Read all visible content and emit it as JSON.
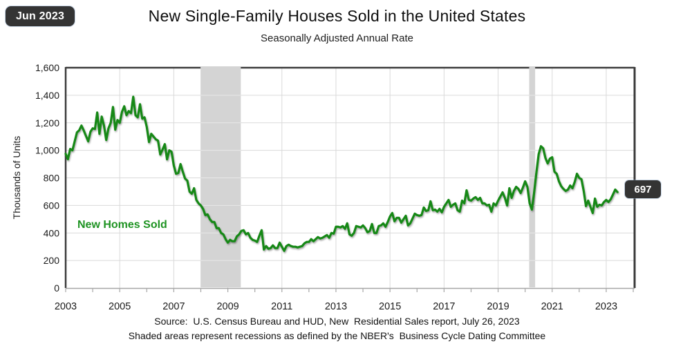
{
  "window": {
    "date_badge": "Jun 2023"
  },
  "header": {
    "title": "New Single-Family Houses Sold in the United States",
    "subtitle": "Seasonally Adjusted Annual Rate"
  },
  "annotations": {
    "series_label": "New Homes Sold",
    "last_value_badge": "697"
  },
  "axis": {
    "y_title": "Thousands of Units"
  },
  "footer": {
    "line1": "Source:  U.S. Census Bureau and HUD, New  Residential Sales report, July 26, 2023",
    "line2": "Shaded areas represent recessions as defined by the NBER's  Business Cycle Dating Committee"
  },
  "colors": {
    "line": "#148814",
    "label_green": "#1e9322",
    "band": "#d4d4d4",
    "grid": "#d9d9d9",
    "grid_on_band": "#e8e8e8",
    "frame": "#3b3b3b",
    "axis_bottom": "#a6a6a6",
    "tick_text": "#1a1a1a",
    "badge_bg": "#343434",
    "badge_text": "#ffffff"
  },
  "chart_data": {
    "type": "line",
    "title": "New Single-Family Houses Sold in the United States",
    "subtitle": "Seasonally Adjusted Annual Rate",
    "ylabel": "Thousands of Units",
    "y_range": [
      0,
      1600
    ],
    "x_range": [
      2003,
      2024.05
    ],
    "ytick_values": [
      0,
      200,
      400,
      600,
      800,
      1000,
      1200,
      1400,
      1600
    ],
    "ytick_labels": [
      "0",
      "200",
      "400",
      "600",
      "800",
      "1,000",
      "1,200",
      "1,400",
      "1,600"
    ],
    "xticks": [
      2003,
      2005,
      2007,
      2009,
      2011,
      2013,
      2015,
      2017,
      2019,
      2021,
      2023
    ],
    "minor_tick_start": 2003,
    "minor_tick_end": 2024,
    "grid": true,
    "recession_bands": [
      [
        2007.99,
        2009.48
      ],
      [
        2020.15,
        2020.37
      ]
    ],
    "last_point": {
      "date": "Jun 2023",
      "value": 697
    },
    "x_start": 2003.0,
    "x_step_years": 0.0833333,
    "series": [
      {
        "name": "New Homes Sold",
        "unit": "thousands of units, SAAR, monthly Jan 2003 - Jun 2023",
        "values": [
          975,
          935,
          1010,
          1000,
          1065,
          1130,
          1145,
          1180,
          1145,
          1105,
          1065,
          1135,
          1160,
          1155,
          1275,
          1120,
          1245,
          1180,
          1075,
          1160,
          1200,
          1315,
          1150,
          1220,
          1200,
          1280,
          1320,
          1255,
          1285,
          1270,
          1389,
          1255,
          1240,
          1335,
          1230,
          1240,
          1170,
          1060,
          1120,
          1100,
          1080,
          1070,
          970,
          1005,
          1045,
          935,
          1000,
          990,
          890,
          830,
          835,
          900,
          845,
          795,
          780,
          700,
          685,
          725,
          640,
          615,
          600,
          575,
          530,
          535,
          500,
          480,
          480,
          435,
          435,
          400,
          390,
          355,
          330,
          350,
          340,
          340,
          375,
          390,
          415,
          420,
          390,
          400,
          365,
          350,
          345,
          335,
          380,
          420,
          280,
          305,
          285,
          290,
          310,
          290,
          290,
          330,
          300,
          270,
          305,
          315,
          305,
          300,
          300,
          295,
          300,
          305,
          325,
          335,
          335,
          355,
          340,
          355,
          370,
          360,
          365,
          375,
          385,
          365,
          400,
          395,
          445,
          445,
          440,
          450,
          430,
          470,
          390,
          380,
          400,
          450,
          445,
          440,
          455,
          435,
          405,
          415,
          465,
          400,
          400,
          450,
          455,
          470,
          445,
          480,
          520,
          545,
          485,
          510,
          510,
          475,
          500,
          525,
          455,
          470,
          505,
          540,
          530,
          525,
          530,
          585,
          560,
          565,
          630,
          565,
          570,
          555,
          575,
          550,
          590,
          615,
          640,
          590,
          605,
          615,
          565,
          555,
          635,
          615,
          710,
          640,
          635,
          650,
          660,
          640,
          655,
          615,
          615,
          600,
          605,
          555,
          615,
          600,
          635,
          665,
          695,
          655,
          600,
          725,
          655,
          705,
          735,
          720,
          690,
          730,
          775,
          735,
          615,
          570,
          695,
          840,
          972,
          1030,
          1015,
          945,
          905,
          940,
          950,
          845,
          830,
          775,
          740,
          720,
          705,
          715,
          745,
          725,
          770,
          830,
          800,
          790,
          705,
          595,
          635,
          590,
          545,
          650,
          590,
          605,
          600,
          625,
          640,
          625,
          645,
          680,
          715,
          697
        ]
      }
    ]
  }
}
